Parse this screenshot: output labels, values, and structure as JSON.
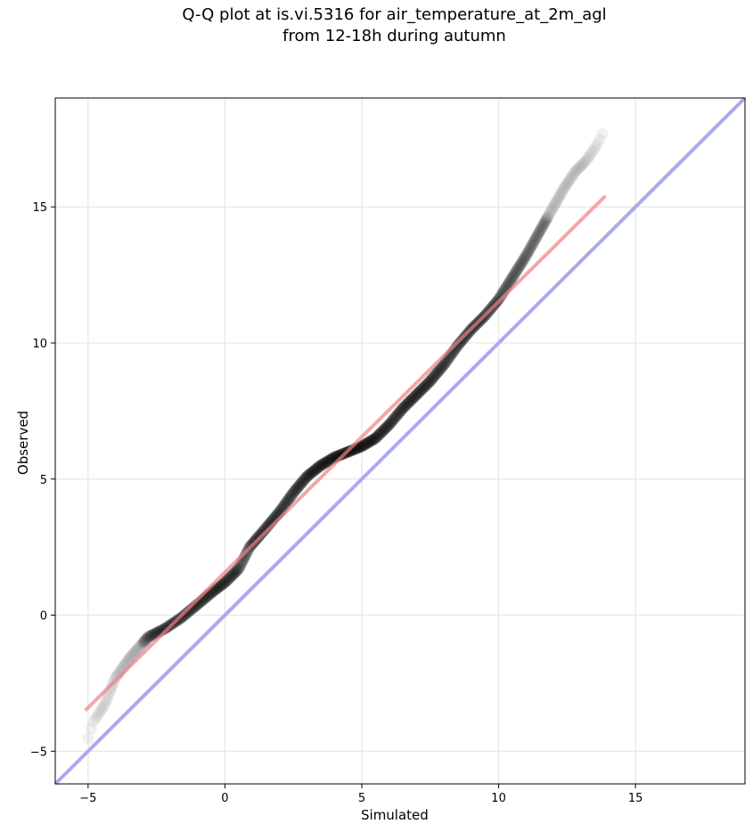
{
  "chart_data": {
    "type": "scatter",
    "title_line1": "Q-Q plot at is.vi.5316 for air_temperature_at_2m_agl",
    "title_line2": "from 12-18h during autumn",
    "xlabel": "Simulated",
    "ylabel": "Observed",
    "xlim": [
      -6.2,
      19.0
    ],
    "ylim": [
      -6.2,
      19.0
    ],
    "xticks": [
      -5,
      0,
      5,
      10,
      15
    ],
    "yticks": [
      -5,
      0,
      5,
      10,
      15
    ],
    "grid": true,
    "reference_line": {
      "label": "1:1",
      "color": "#aaaaf0",
      "x": [
        -6.2,
        19.0
      ],
      "y": [
        -6.2,
        19.0
      ]
    },
    "fit_line": {
      "color": "#f4a3a3",
      "x": [
        -5.1,
        13.9
      ],
      "y": [
        -3.5,
        15.4
      ]
    },
    "qq_curve": {
      "x": [
        -5.1,
        -4.8,
        -4.4,
        -4.0,
        -3.5,
        -2.8,
        -2.2,
        -1.6,
        -1.0,
        -0.4,
        0.0,
        0.5,
        0.9,
        1.5,
        2.0,
        2.5,
        3.0,
        3.5,
        4.0,
        4.5,
        5.0,
        5.5,
        6.0,
        6.5,
        7.0,
        7.5,
        8.0,
        8.5,
        9.0,
        9.5,
        10.0,
        10.5,
        11.0,
        11.5,
        12.0,
        12.4,
        12.8,
        13.2,
        13.6,
        13.9
      ],
      "y": [
        -4.9,
        -3.9,
        -3.3,
        -2.3,
        -1.6,
        -0.8,
        -0.5,
        -0.1,
        0.4,
        0.9,
        1.2,
        1.7,
        2.5,
        3.2,
        3.8,
        4.5,
        5.1,
        5.5,
        5.8,
        6.0,
        6.2,
        6.5,
        7.0,
        7.6,
        8.1,
        8.6,
        9.2,
        9.9,
        10.5,
        11.0,
        11.6,
        12.4,
        13.2,
        14.1,
        15.0,
        15.7,
        16.3,
        16.7,
        17.3,
        17.9
      ]
    },
    "point_color": "#000000",
    "tail_point_color": "#bbbbbb"
  }
}
